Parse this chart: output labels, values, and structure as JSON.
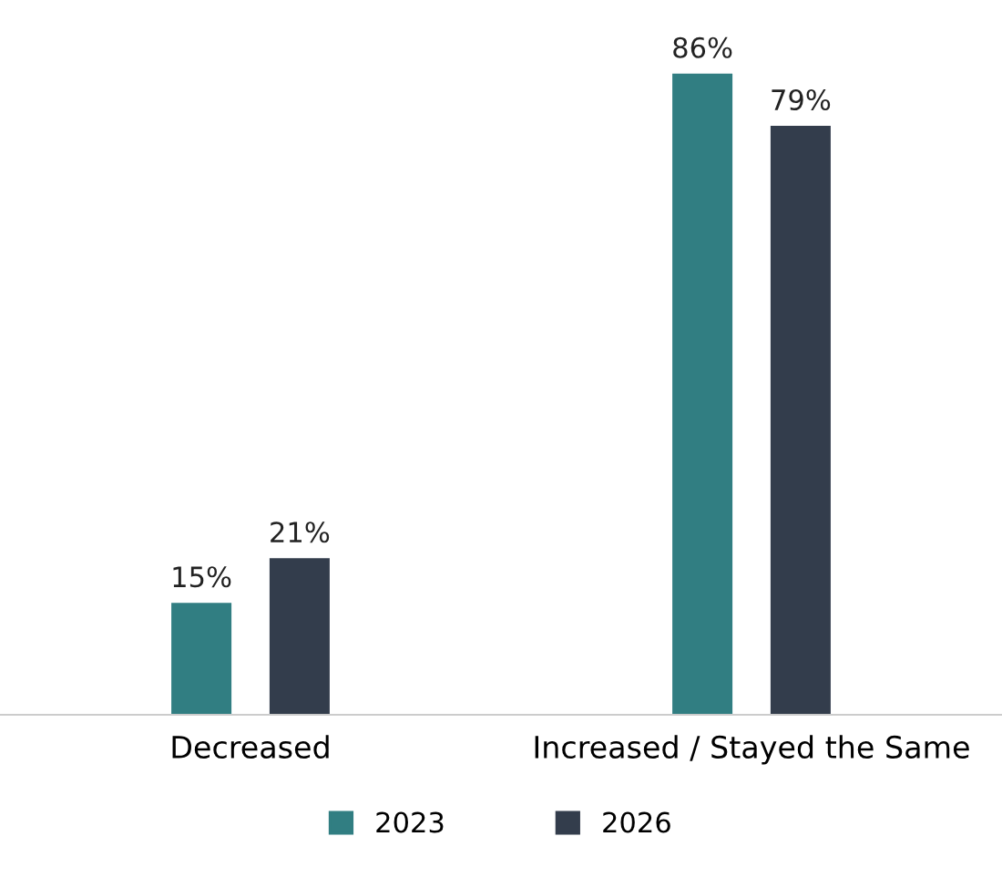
{
  "chart_data": {
    "type": "bar",
    "categories": [
      "Decreased",
      "Increased / Stayed the Same"
    ],
    "series": [
      {
        "name": "2023",
        "color": "#317e82",
        "values": [
          15,
          86
        ],
        "value_labels": [
          "15%",
          "86%"
        ]
      },
      {
        "name": "2026",
        "color": "#333d4c",
        "values": [
          21,
          79
        ],
        "value_labels": [
          "21%",
          "79%"
        ]
      }
    ],
    "legend": "bottom",
    "grid": false
  }
}
